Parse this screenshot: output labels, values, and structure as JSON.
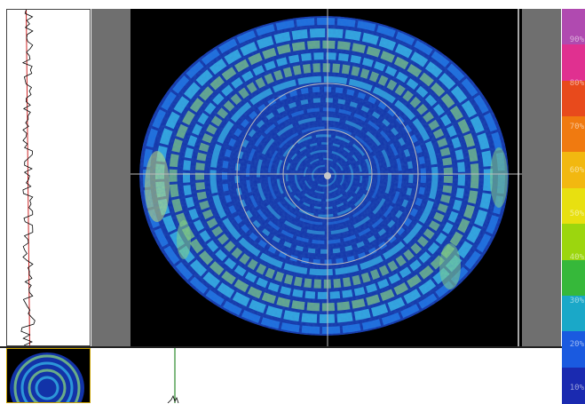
{
  "colorbar": {
    "labels": [
      "90%",
      "80%",
      "70%",
      "60%",
      "50%",
      "40%",
      "30%",
      "20%",
      "10%"
    ],
    "colors": [
      "#b04ab0",
      "#e03090",
      "#e84a1c",
      "#f07a10",
      "#f2b810",
      "#e8e010",
      "#9cd60e",
      "#36b83a",
      "#1aa8c8",
      "#1a5ae0",
      "#1a2ab0"
    ]
  },
  "beam_view": {
    "background": "#000000",
    "crosshair_color": "#bcbcbc",
    "palette": {
      "deep": "#1233a8",
      "mid": "#1e74e6",
      "light": "#38c0ec",
      "green": "#8fe07a",
      "yellow": "#d8ec6a"
    }
  },
  "profiles": {
    "line_color": "#000000",
    "fit_color": "#cc2222",
    "marker_color": "#2a8a2a"
  }
}
